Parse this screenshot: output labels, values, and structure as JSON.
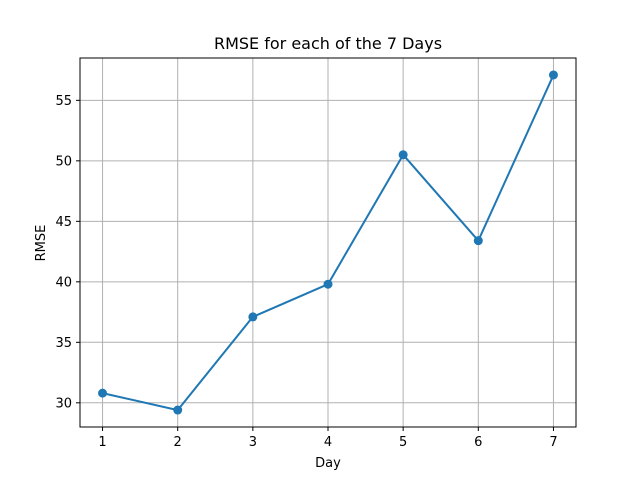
{
  "chart_data": {
    "type": "line",
    "title": "RMSE for each of the 7 Days",
    "xlabel": "Day",
    "ylabel": "RMSE",
    "x": [
      1,
      2,
      3,
      4,
      5,
      6,
      7
    ],
    "series": [
      {
        "values": [
          30.8,
          29.4,
          37.1,
          39.8,
          50.5,
          43.4,
          57.1
        ],
        "color": "#1f77b4",
        "marker": "circle"
      }
    ],
    "xticks": [
      "1",
      "2",
      "3",
      "4",
      "5",
      "6",
      "7"
    ],
    "yticks": [
      "30",
      "35",
      "40",
      "45",
      "50",
      "55"
    ],
    "xlim": [
      0.7,
      7.3
    ],
    "ylim": [
      28.0,
      58.5
    ],
    "grid": true,
    "colors": {
      "grid": "#b0b0b0",
      "axes": "#000000",
      "line": "#1f77b4"
    }
  }
}
